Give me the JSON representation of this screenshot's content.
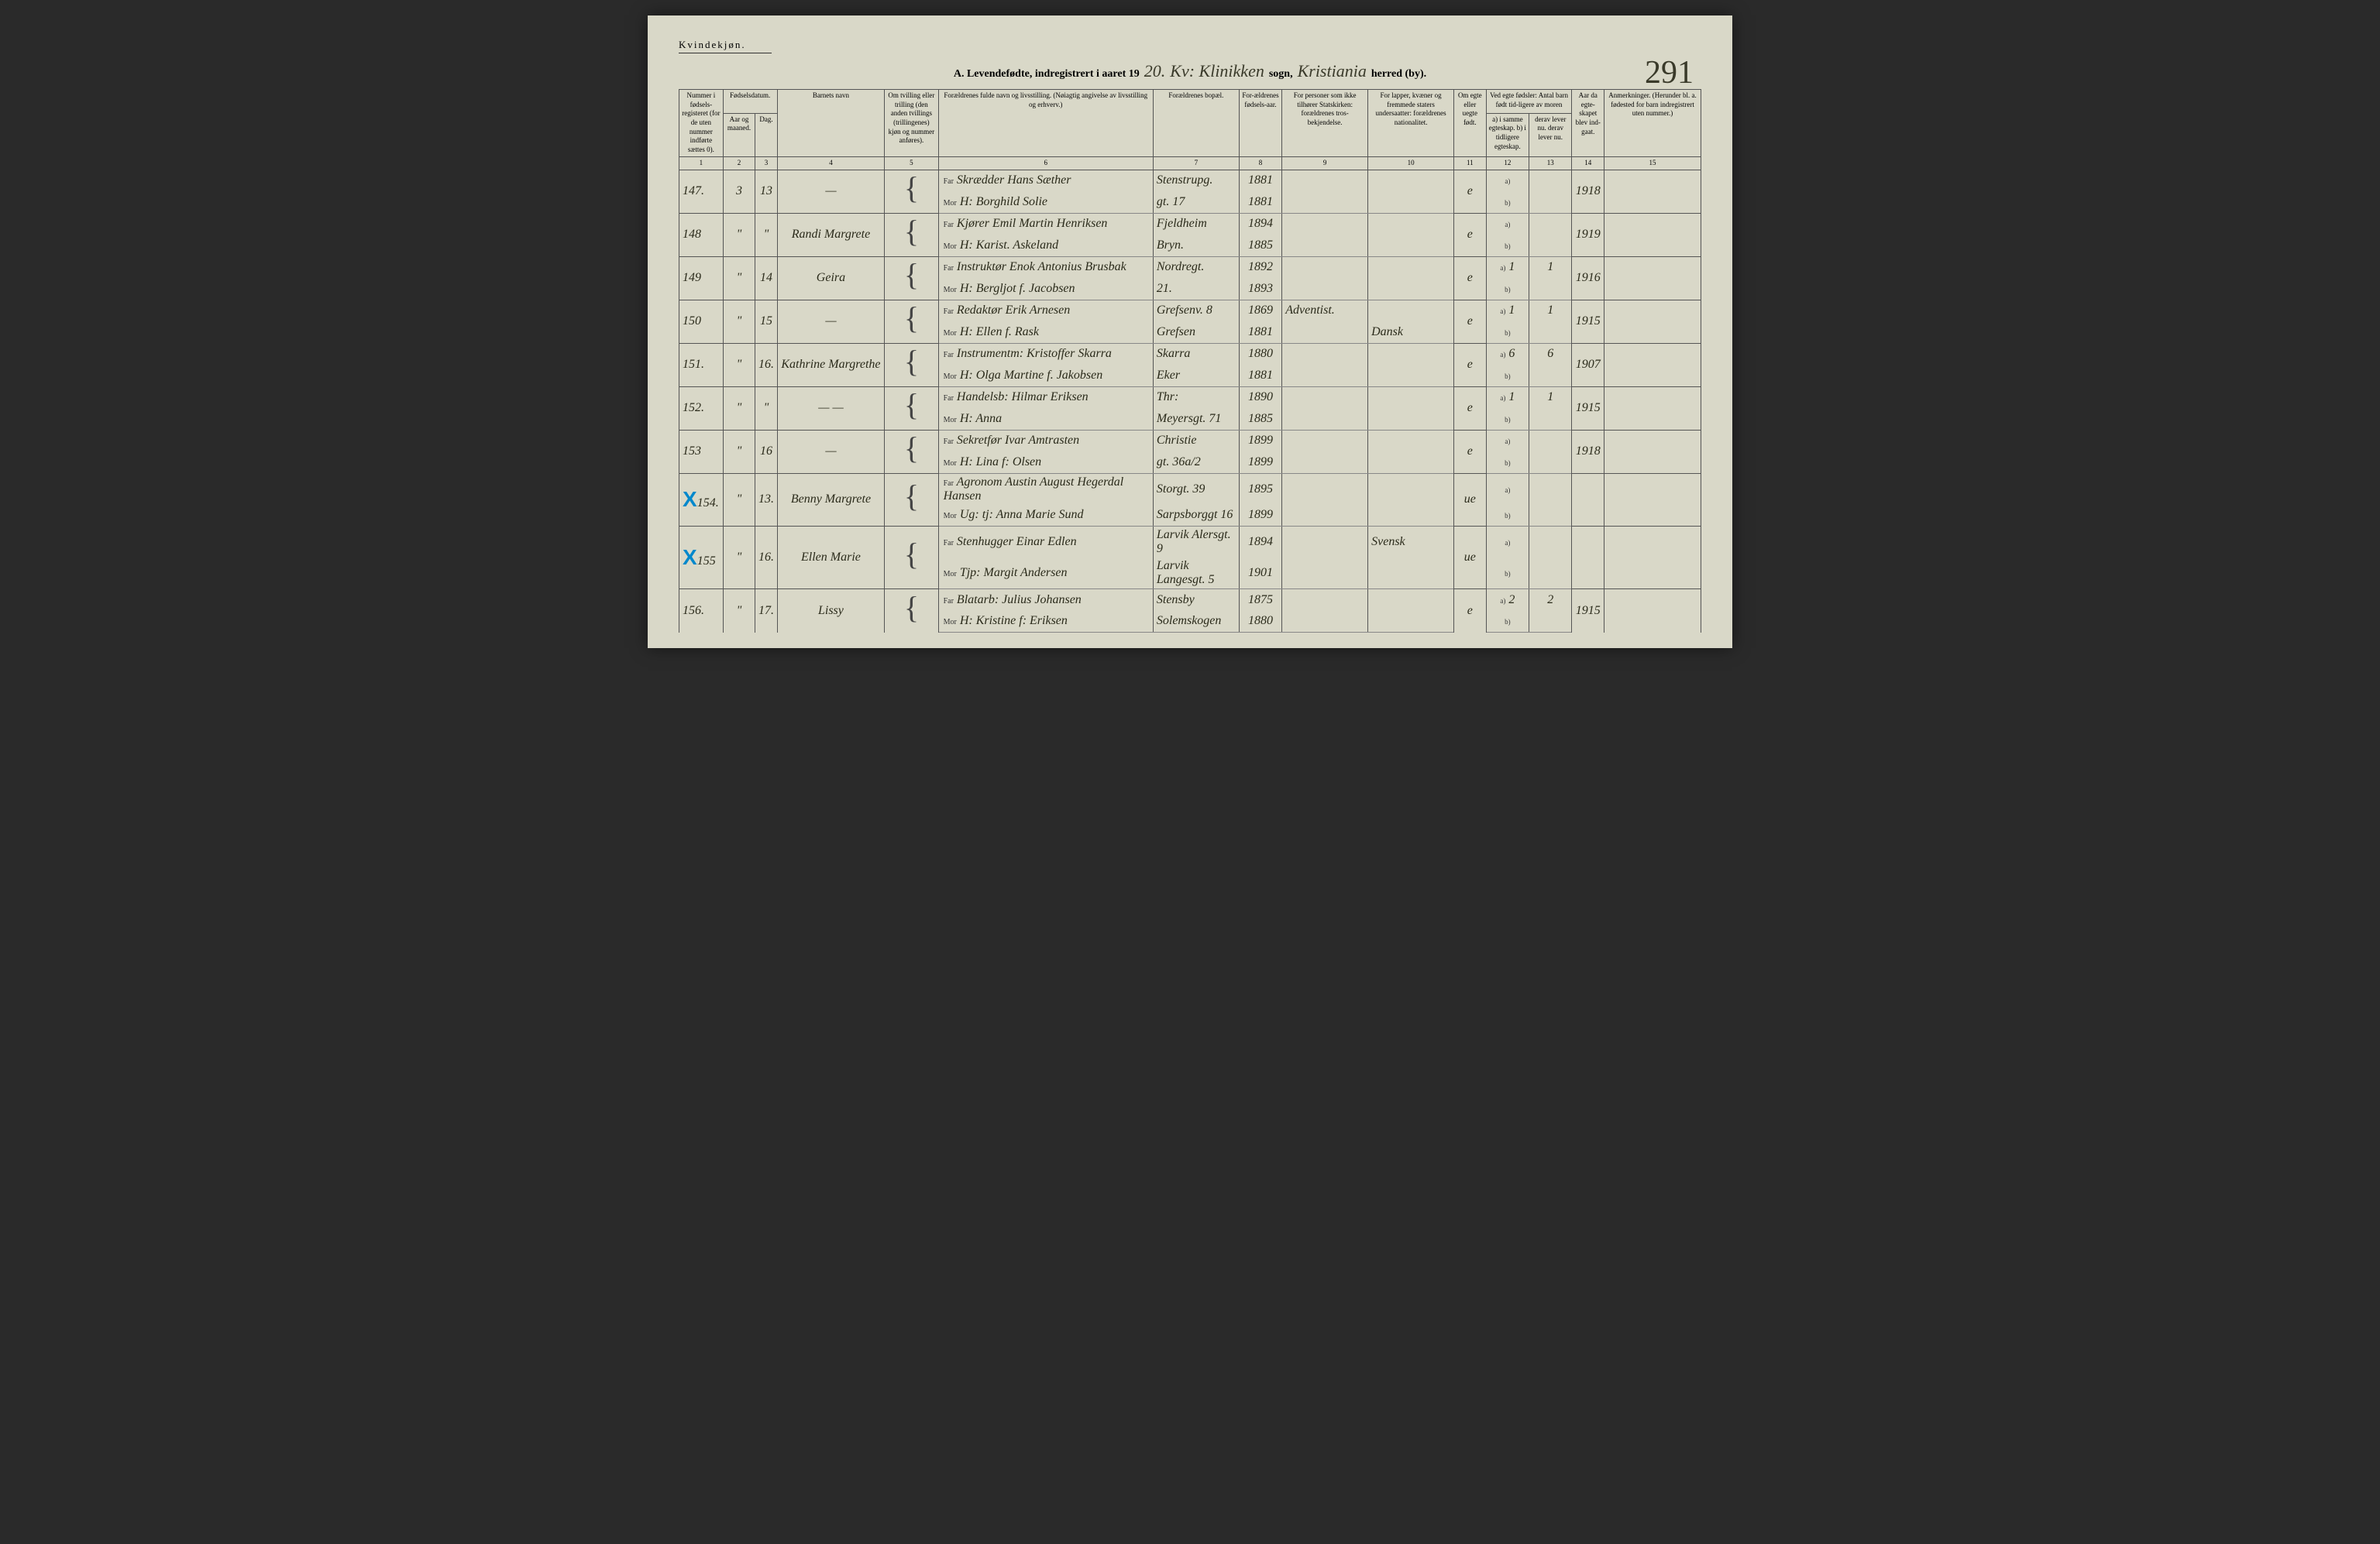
{
  "header": {
    "gender": "Kvindekjøn.",
    "title_prefix": "A. Levendefødte, indregistrert i aaret 19",
    "year_suffix": "20.",
    "sogn_label": "sogn,",
    "herred_label": "herred (by).",
    "sogn_value": "Kv: Klinikken",
    "herred_value": "Kristiania",
    "page_number": "291"
  },
  "columns": {
    "c1": "Nummer i fødsels-registeret (for de uten nummer indførte sættes 0).",
    "c2_3": "Fødselsdatum.",
    "c2": "Aar og maaned.",
    "c3": "Dag.",
    "c4": "Barnets navn",
    "c5": "Om tvilling eller trilling (den anden tvillings (trillingenes) kjøn og nummer anføres).",
    "c6": "Forældrenes fulde navn og livsstilling. (Nøiagtig angivelse av livsstilling og erhverv.)",
    "c7": "Forældrenes bopæl.",
    "c8": "For-ældrenes fødsels-aar.",
    "c9": "For personer som ikke tilhører Statskirken: forældrenes tros-bekjendelse.",
    "c10": "For lapper, kvæner og fremmede staters undersaatter: forældrenes nationalitet.",
    "c11": "Om egte eller uegte født.",
    "c12_13": "Ved egte fødsler: Antal barn født tid-ligere av moren",
    "c12": "a) i samme egteskap. b) i tidligere egteskap.",
    "c13": "derav lever nu. derav lever nu.",
    "c14": "Aar da egte-skapet blev ind-gaat.",
    "c15": "Anmerkninger. (Herunder bl. a. fødested for barn indregistrert uten nummer.)",
    "far": "Far",
    "mor": "Mor"
  },
  "rows": [
    {
      "num": "147.",
      "month": "3",
      "day": "13",
      "name": "—",
      "far": "Skrædder Hans Sæther",
      "far_bopael": "Stenstrupg.",
      "far_aar": "1881",
      "mor": "H: Borghild Solie",
      "mor_bopael": "gt. 17",
      "mor_aar": "1881",
      "egte": "e",
      "a": "",
      "b": "",
      "c14": "1918"
    },
    {
      "num": "148",
      "month": "\"",
      "day": "\"",
      "name": "Randi Margrete",
      "far": "Kjører Emil Martin Henriksen",
      "far_bopael": "Fjeldheim",
      "far_aar": "1894",
      "mor": "H: Karist. Askeland",
      "mor_bopael": "Bryn.",
      "mor_aar": "1885",
      "egte": "e",
      "a": "",
      "b": "",
      "c14": "1919"
    },
    {
      "num": "149",
      "month": "\"",
      "day": "14",
      "name": "Geira",
      "far": "Instruktør Enok Antonius Brusbak",
      "far_bopael": "Nordregt.",
      "far_aar": "1892",
      "mor": "H: Bergljot f. Jacobsen",
      "mor_bopael": "21.",
      "mor_aar": "1893",
      "egte": "e",
      "a": "1",
      "b": "1",
      "c14": "1916"
    },
    {
      "num": "150",
      "month": "\"",
      "day": "15",
      "name": "—",
      "far": "Redaktør Erik Arnesen",
      "far_bopael": "Grefsenv. 8",
      "far_aar": "1869",
      "c9_far": "Adventist.",
      "mor": "H: Ellen f. Rask",
      "mor_bopael": "Grefsen",
      "mor_aar": "1881",
      "c10_mor": "Dansk",
      "egte": "e",
      "a": "1",
      "b": "1",
      "c14": "1915"
    },
    {
      "num": "151.",
      "month": "\"",
      "day": "16.",
      "name": "Kathrine Margrethe",
      "far": "Instrumentm: Kristoffer Skarra",
      "far_bopael": "Skarra",
      "far_aar": "1880",
      "mor": "H: Olga Martine f. Jakobsen",
      "mor_bopael": "Eker",
      "mor_aar": "1881",
      "egte": "e",
      "a": "6",
      "b": "6",
      "c14": "1907"
    },
    {
      "num": "152.",
      "month": "\"",
      "day": "\"",
      "name": "— —",
      "far": "Handelsb: Hilmar Eriksen",
      "far_bopael": "Thr:",
      "far_aar": "1890",
      "mor": "H: Anna",
      "mor_bopael": "Meyersgt. 71",
      "mor_aar": "1885",
      "egte": "e",
      "a": "1",
      "b": "1",
      "c14": "1915"
    },
    {
      "num": "153",
      "month": "\"",
      "day": "16",
      "name": "—",
      "far": "Sekretfør Ivar Amtrasten",
      "far_bopael": "Christie",
      "far_aar": "1899",
      "mor": "H: Lina f: Olsen",
      "mor_bopael": "gt. 36a/2",
      "mor_aar": "1899",
      "egte": "e",
      "a": "",
      "b": "",
      "c14": "1918"
    },
    {
      "num": "154.",
      "month": "\"",
      "day": "13.",
      "name": "Benny Margrete",
      "x": true,
      "far": "Agronom Austin August Hegerdal Hansen",
      "far_bopael": "Storgt. 39",
      "far_aar": "1895",
      "mor": "Ug: tj: Anna Marie Sund",
      "mor_bopael": "Sarpsborggt 16",
      "mor_aar": "1899",
      "egte": "ue",
      "blue": true
    },
    {
      "num": "155",
      "month": "\"",
      "day": "16.",
      "name": "Ellen Marie",
      "x": true,
      "far": "Stenhugger Einar Edlen",
      "far_bopael": "Larvik Alersgt. 9",
      "far_aar": "1894",
      "c10_far": "Svensk",
      "mor": "Tjp: Margit Andersen",
      "mor_bopael": "Larvik Langesgt. 5",
      "mor_aar": "1901",
      "egte": "ue",
      "blue": true
    },
    {
      "num": "156.",
      "month": "\"",
      "day": "17.",
      "name": "Lissy",
      "far": "Blatarb: Julius Johansen",
      "far_bopael": "Stensby",
      "far_aar": "1875",
      "mor": "H: Kristine f: Eriksen",
      "mor_bopael": "Solemskogen",
      "mor_aar": "1880",
      "egte": "e",
      "a": "2",
      "b": "2",
      "c14": "1915"
    }
  ],
  "colors": {
    "page_bg": "#d9d8c8",
    "ink": "#2a2a1a",
    "blue_pencil": "#0099cc",
    "border": "#555555"
  }
}
